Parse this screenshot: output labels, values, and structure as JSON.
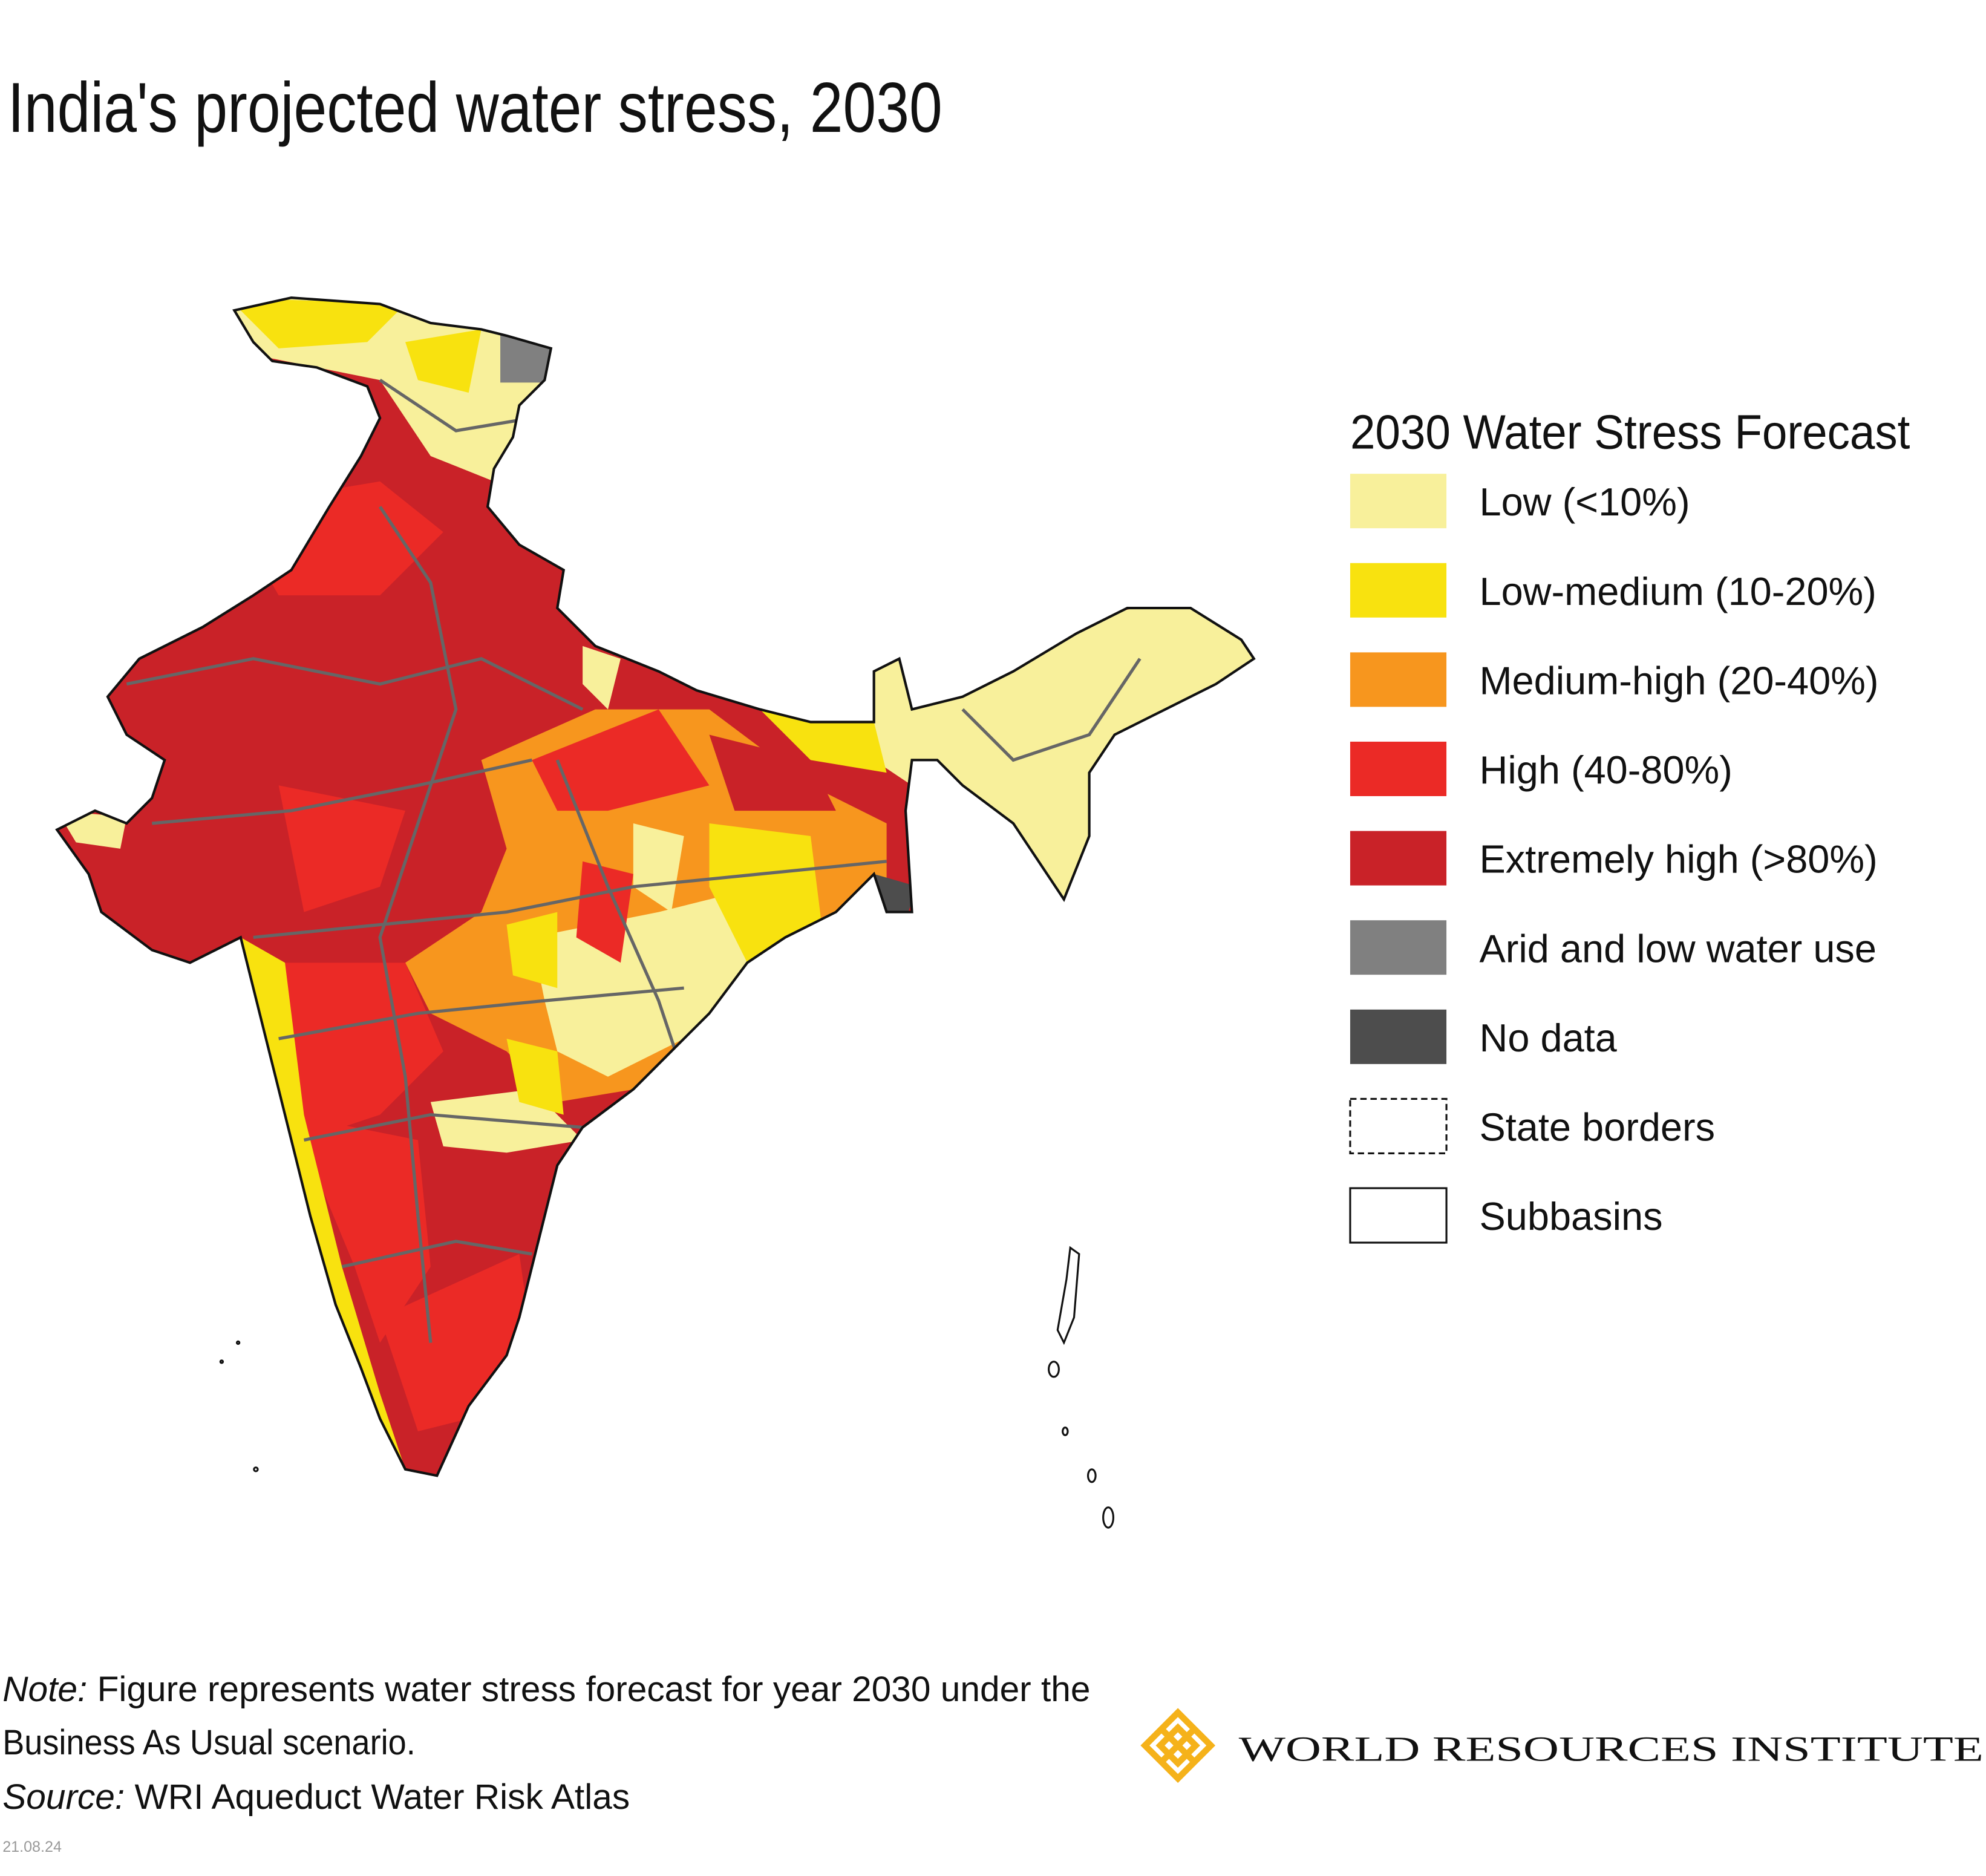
{
  "title": "India's projected water stress, 2030",
  "legend": {
    "title": "2030 Water Stress Forecast",
    "items": [
      {
        "label": "Low (<10%)",
        "color": "#f8f09b"
      },
      {
        "label": "Low-medium (10-20%)",
        "color": "#f8e20f"
      },
      {
        "label": "Medium-high (20-40%)",
        "color": "#f7961e"
      },
      {
        "label": "High (40-80%)",
        "color": "#eb2a26"
      },
      {
        "label": "Extremely high (>80%)",
        "color": "#c92228"
      },
      {
        "label": "Arid and low water use",
        "color": "#808080"
      },
      {
        "label": "No data",
        "color": "#4d4d4d"
      },
      {
        "label": "State borders",
        "color": "#ffffff",
        "border": "dashed"
      },
      {
        "label": "Subbasins",
        "color": "#ffffff",
        "border": "solid"
      }
    ]
  },
  "footer": {
    "note_label": "Note:",
    "note": [
      "Figure represents water stress forecast for year 2030 under the",
      "Business As Usual scenario."
    ],
    "source_label": "Source:",
    "source": "WRI Aqueduct Water Risk Atlas",
    "date": "21.08.24"
  },
  "logo": "WORLD RESOURCES INSTITUTE"
}
